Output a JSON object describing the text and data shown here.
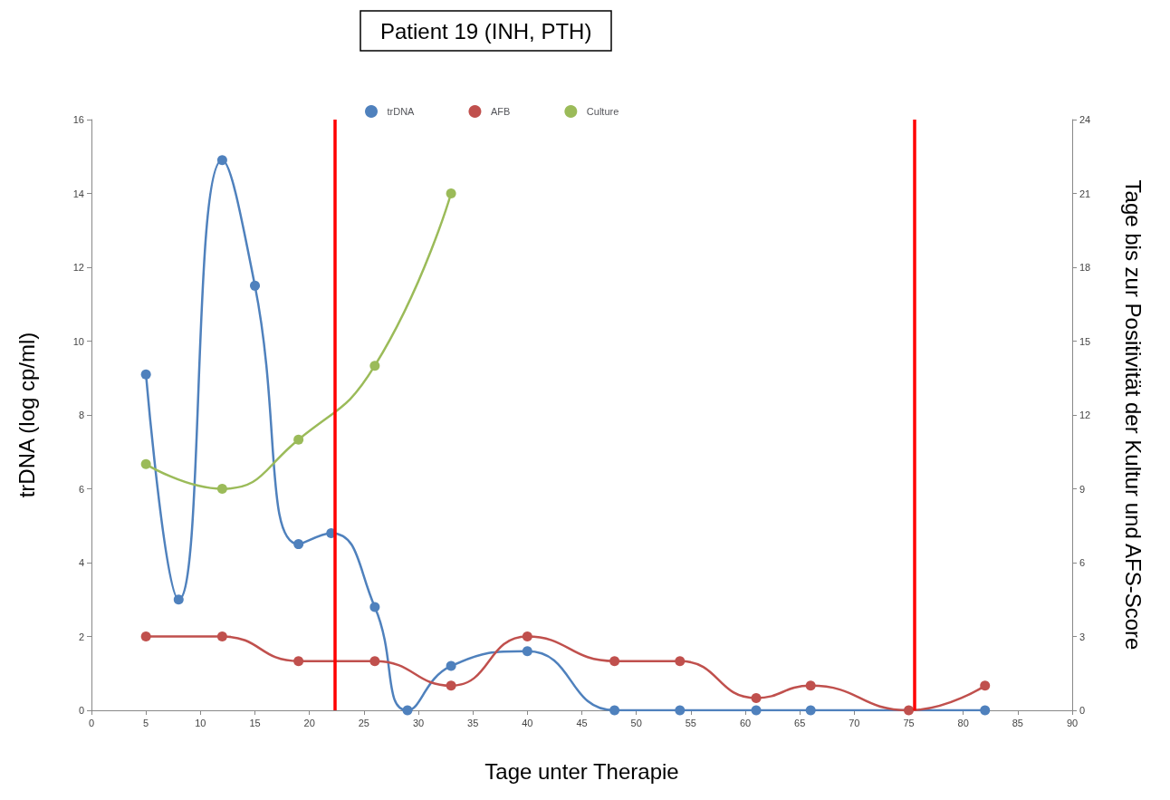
{
  "chart_data": {
    "type": "line",
    "title": "Patient 19 (INH, PTH)",
    "xlabel": "Tage unter Therapie",
    "ylabel": "trDNA (log cp/ml)",
    "y2label": "Tage bis zur Positivität der Kultur und AFS-Score",
    "series": [
      {
        "name": "trDNA",
        "color": "#4f81bd",
        "x": [
          5,
          8,
          12,
          15,
          19,
          22,
          26,
          29,
          33,
          40,
          48,
          54,
          61,
          66,
          82
        ],
        "values": [
          9.1,
          3.0,
          14.9,
          11.5,
          4.5,
          4.8,
          2.8,
          0,
          1.2,
          1.6,
          0,
          0,
          0,
          0,
          0
        ]
      },
      {
        "name": "AFB",
        "color": "#c0504d",
        "axis": "y2",
        "x": [
          5,
          12,
          19,
          26,
          33,
          40,
          48,
          54,
          61,
          66,
          75,
          82
        ],
        "values": [
          3,
          3,
          2,
          2,
          1,
          3,
          2,
          2,
          0.5,
          1,
          0,
          1
        ]
      },
      {
        "name": "Culture",
        "color": "#9bbb59",
        "axis": "y2",
        "x": [
          5,
          12,
          19,
          26,
          33
        ],
        "values": [
          10,
          9,
          11,
          14,
          21
        ]
      }
    ],
    "xlim": [
      0,
      90
    ],
    "xticks": [
      0,
      5,
      10,
      15,
      20,
      25,
      30,
      35,
      40,
      45,
      50,
      55,
      60,
      65,
      70,
      75,
      80,
      85,
      90
    ],
    "ylim": [
      0,
      16
    ],
    "yticks": [
      0,
      2,
      4,
      6,
      8,
      10,
      12,
      14,
      16
    ],
    "y2lim": [
      0,
      24
    ],
    "y2ticks": [
      0,
      3,
      6,
      9,
      12,
      15,
      18,
      21,
      24
    ],
    "ref_lines": [
      {
        "axis": "x",
        "value": 22.3,
        "color": "#ff0000"
      },
      {
        "axis": "x",
        "value": 75.5,
        "color": "#ff0000"
      }
    ],
    "legend": "top",
    "marker": "circle",
    "line_style": "solid",
    "grid": false
  }
}
